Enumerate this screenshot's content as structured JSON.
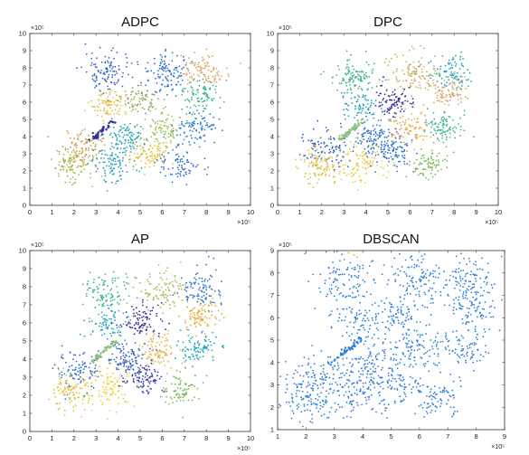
{
  "figure": {
    "background": "#ffffff",
    "palette_note_colors": [
      "#3a63c8",
      "#2f8fd1",
      "#1ea6b8",
      "#3bb58a",
      "#7bb85a",
      "#b8b04a",
      "#e2b83a",
      "#f0c83c",
      "#5a3fb0",
      "#3d2d9b",
      "#d9a86b",
      "#c9c95a"
    ]
  },
  "chart_data": [
    {
      "type": "scatter",
      "title": "ADPC",
      "xlim": [
        0,
        10
      ],
      "ylim": [
        0,
        10
      ],
      "xticks": [
        "0",
        "1",
        "2",
        "3",
        "4",
        "5",
        "6",
        "7",
        "8",
        "9",
        "10"
      ],
      "yticks": [
        "0",
        "1",
        "2",
        "3",
        "4",
        "5",
        "6",
        "7",
        "8",
        "9",
        "10"
      ],
      "x_multiplier": "×10⁵",
      "y_multiplier": "×10⁵",
      "clusters": [
        {
          "cx": 3.5,
          "cy": 7.7,
          "color": "#3a63c8",
          "n": 110,
          "sd": 0.55
        },
        {
          "cx": 6.1,
          "cy": 7.7,
          "color": "#2f6fd0",
          "n": 110,
          "sd": 0.55
        },
        {
          "cx": 7.9,
          "cy": 7.8,
          "color": "#d9a86b",
          "n": 100,
          "sd": 0.5
        },
        {
          "cx": 7.8,
          "cy": 6.4,
          "color": "#3bb58a",
          "n": 90,
          "sd": 0.45
        },
        {
          "cx": 3.6,
          "cy": 5.9,
          "color": "#e2c03a",
          "n": 90,
          "sd": 0.45
        },
        {
          "cx": 5.0,
          "cy": 6.1,
          "color": "#8aa860",
          "n": 70,
          "sd": 0.45
        },
        {
          "cx": 6.0,
          "cy": 4.4,
          "color": "#9bbf5a",
          "n": 90,
          "sd": 0.5
        },
        {
          "cx": 4.4,
          "cy": 4.0,
          "color": "#1ea6b8",
          "n": 100,
          "sd": 0.5
        },
        {
          "cx": 7.6,
          "cy": 4.6,
          "color": "#2c7fc8",
          "n": 90,
          "sd": 0.45
        },
        {
          "cx": 2.4,
          "cy": 3.4,
          "color": "#c89a4a",
          "n": 90,
          "sd": 0.5
        },
        {
          "cx": 1.9,
          "cy": 2.2,
          "color": "#b8b04a",
          "n": 100,
          "sd": 0.5
        },
        {
          "cx": 3.8,
          "cy": 2.5,
          "color": "#2a9fb8",
          "n": 100,
          "sd": 0.55
        },
        {
          "cx": 5.4,
          "cy": 3.0,
          "color": "#e8c43a",
          "n": 90,
          "sd": 0.45
        },
        {
          "cx": 6.8,
          "cy": 2.4,
          "color": "#2f6fd0",
          "n": 80,
          "sd": 0.45
        }
      ],
      "segment": {
        "x0": 2.8,
        "y0": 3.8,
        "x1": 3.9,
        "y1": 5.0,
        "color": "#3d2d9b",
        "n": 45
      }
    },
    {
      "type": "scatter",
      "title": "DPC",
      "xlim": [
        0,
        10
      ],
      "ylim": [
        0,
        10
      ],
      "xticks": [
        "0",
        "1",
        "2",
        "3",
        "4",
        "5",
        "6",
        "7",
        "8",
        "9",
        "10"
      ],
      "yticks": [
        "0",
        "1",
        "2",
        "3",
        "4",
        "5",
        "6",
        "7",
        "8",
        "9",
        "10"
      ],
      "x_multiplier": "×10⁵",
      "y_multiplier": "×10⁵",
      "clusters": [
        {
          "cx": 3.5,
          "cy": 7.6,
          "color": "#3bb58a",
          "n": 110,
          "sd": 0.55
        },
        {
          "cx": 6.2,
          "cy": 7.7,
          "color": "#c9b060",
          "n": 110,
          "sd": 0.55
        },
        {
          "cx": 7.8,
          "cy": 7.7,
          "color": "#1ea6b8",
          "n": 90,
          "sd": 0.5
        },
        {
          "cx": 7.8,
          "cy": 6.5,
          "color": "#d9a86b",
          "n": 90,
          "sd": 0.45
        },
        {
          "cx": 5.2,
          "cy": 6.1,
          "color": "#3d2d9b",
          "n": 90,
          "sd": 0.45
        },
        {
          "cx": 3.7,
          "cy": 5.8,
          "color": "#2aa0c0",
          "n": 80,
          "sd": 0.45
        },
        {
          "cx": 5.9,
          "cy": 4.5,
          "color": "#e0a84a",
          "n": 90,
          "sd": 0.5
        },
        {
          "cx": 4.4,
          "cy": 4.0,
          "color": "#2f6fd0",
          "n": 100,
          "sd": 0.5
        },
        {
          "cx": 7.6,
          "cy": 4.6,
          "color": "#3bb58a",
          "n": 90,
          "sd": 0.45
        },
        {
          "cx": 2.2,
          "cy": 3.4,
          "color": "#2c5fc0",
          "n": 90,
          "sd": 0.5
        },
        {
          "cx": 1.9,
          "cy": 2.2,
          "color": "#e2c03a",
          "n": 100,
          "sd": 0.5
        },
        {
          "cx": 3.7,
          "cy": 2.5,
          "color": "#f0c83c",
          "n": 100,
          "sd": 0.55
        },
        {
          "cx": 5.2,
          "cy": 3.1,
          "color": "#2f6fd0",
          "n": 90,
          "sd": 0.45
        },
        {
          "cx": 6.8,
          "cy": 2.4,
          "color": "#7bb85a",
          "n": 80,
          "sd": 0.45
        }
      ],
      "segment": {
        "x0": 2.8,
        "y0": 3.8,
        "x1": 3.9,
        "y1": 5.0,
        "color": "#8cc07a",
        "n": 45
      }
    },
    {
      "type": "scatter",
      "title": "AP",
      "xlim": [
        0,
        10
      ],
      "ylim": [
        0,
        10
      ],
      "xticks": [
        "0",
        "1",
        "2",
        "3",
        "4",
        "5",
        "6",
        "7",
        "8",
        "9",
        "10"
      ],
      "yticks": [
        "0",
        "1",
        "2",
        "3",
        "4",
        "5",
        "6",
        "7",
        "8",
        "9",
        "10"
      ],
      "x_multiplier": "×10⁵",
      "y_multiplier": "×10⁵",
      "clusters": [
        {
          "cx": 3.4,
          "cy": 7.7,
          "color": "#3bb58a",
          "n": 100,
          "sd": 0.55
        },
        {
          "cx": 6.1,
          "cy": 7.8,
          "color": "#a8b860",
          "n": 100,
          "sd": 0.55
        },
        {
          "cx": 7.7,
          "cy": 7.8,
          "color": "#2f6fd0",
          "n": 90,
          "sd": 0.5
        },
        {
          "cx": 7.8,
          "cy": 6.4,
          "color": "#e2b03a",
          "n": 90,
          "sd": 0.45
        },
        {
          "cx": 5.1,
          "cy": 6.1,
          "color": "#3d2d9b",
          "n": 90,
          "sd": 0.45
        },
        {
          "cx": 3.6,
          "cy": 5.9,
          "color": "#2aa0c0",
          "n": 80,
          "sd": 0.45
        },
        {
          "cx": 5.7,
          "cy": 4.4,
          "color": "#e8b04a",
          "n": 100,
          "sd": 0.5
        },
        {
          "cx": 4.3,
          "cy": 4.0,
          "color": "#2f5fc8",
          "n": 100,
          "sd": 0.5
        },
        {
          "cx": 7.6,
          "cy": 4.6,
          "color": "#1ea6b8",
          "n": 90,
          "sd": 0.45
        },
        {
          "cx": 2.2,
          "cy": 3.3,
          "color": "#2c6fd0",
          "n": 90,
          "sd": 0.5
        },
        {
          "cx": 1.8,
          "cy": 2.1,
          "color": "#e2c03a",
          "n": 100,
          "sd": 0.5
        },
        {
          "cx": 3.7,
          "cy": 2.5,
          "color": "#f0d03c",
          "n": 100,
          "sd": 0.55
        },
        {
          "cx": 5.2,
          "cy": 3.0,
          "color": "#3a3fb0",
          "n": 90,
          "sd": 0.45
        },
        {
          "cx": 6.9,
          "cy": 2.3,
          "color": "#7bb85a",
          "n": 80,
          "sd": 0.45
        }
      ],
      "segment": {
        "x0": 2.8,
        "y0": 3.8,
        "x1": 3.9,
        "y1": 5.0,
        "color": "#8cc07a",
        "n": 45
      }
    },
    {
      "type": "scatter",
      "title": "DBSCAN",
      "xlim": [
        1,
        9
      ],
      "ylim": [
        1,
        9
      ],
      "xticks": [
        "1",
        "2",
        "3",
        "4",
        "5",
        "6",
        "7",
        "8",
        "9"
      ],
      "yticks": [
        "1",
        "2",
        "3",
        "4",
        "5",
        "6",
        "7",
        "8",
        "9"
      ],
      "x_multiplier": "×10⁵",
      "y_multiplier": "×10⁵",
      "clusters": [
        {
          "cx": 3.4,
          "cy": 7.7,
          "color": "#2f7fd6",
          "n": 110,
          "sd": 0.55
        },
        {
          "cx": 6.0,
          "cy": 7.7,
          "color": "#2f7fd6",
          "n": 110,
          "sd": 0.55
        },
        {
          "cx": 7.7,
          "cy": 7.8,
          "color": "#2f7fd6",
          "n": 90,
          "sd": 0.5
        },
        {
          "cx": 7.8,
          "cy": 6.5,
          "color": "#2f7fd6",
          "n": 90,
          "sd": 0.45
        },
        {
          "cx": 5.3,
          "cy": 6.0,
          "color": "#2f7fd6",
          "n": 90,
          "sd": 0.45
        },
        {
          "cx": 3.8,
          "cy": 5.9,
          "color": "#2f7fd6",
          "n": 80,
          "sd": 0.45
        },
        {
          "cx": 5.8,
          "cy": 4.5,
          "color": "#2f7fd6",
          "n": 90,
          "sd": 0.5
        },
        {
          "cx": 4.2,
          "cy": 4.0,
          "color": "#2f7fd6",
          "n": 100,
          "sd": 0.5
        },
        {
          "cx": 7.6,
          "cy": 4.6,
          "color": "#2f7fd6",
          "n": 90,
          "sd": 0.45
        },
        {
          "cx": 2.2,
          "cy": 3.4,
          "color": "#2f7fd6",
          "n": 90,
          "sd": 0.5
        },
        {
          "cx": 2.0,
          "cy": 2.2,
          "color": "#2f7fd6",
          "n": 100,
          "sd": 0.5
        },
        {
          "cx": 3.8,
          "cy": 2.6,
          "color": "#2f7fd6",
          "n": 100,
          "sd": 0.55
        },
        {
          "cx": 5.2,
          "cy": 3.0,
          "color": "#2f7fd6",
          "n": 90,
          "sd": 0.45
        },
        {
          "cx": 6.7,
          "cy": 2.4,
          "color": "#2f7fd6",
          "n": 80,
          "sd": 0.45
        }
      ],
      "segment": {
        "x0": 2.8,
        "y0": 3.9,
        "x1": 3.9,
        "y1": 5.0,
        "color": "#2f7fd6",
        "n": 45
      },
      "noise_points": [
        {
          "x": 3.6,
          "y": 9.0,
          "color": "#e2c03a"
        },
        {
          "x": 3.7,
          "y": 8.8,
          "color": "#e2c03a"
        },
        {
          "x": 3.5,
          "y": 8.9,
          "color": "#e2c03a"
        },
        {
          "x": 3.8,
          "y": 8.7,
          "color": "#e2c03a"
        },
        {
          "x": 8.9,
          "y": 6.8,
          "color": "#3bb58a"
        },
        {
          "x": 6.4,
          "y": 5.0,
          "color": "#3bb58a"
        },
        {
          "x": 6.5,
          "y": 4.9,
          "color": "#3bb58a"
        },
        {
          "x": 3.7,
          "y": 7.4,
          "color": "#3bb58a"
        }
      ]
    }
  ]
}
